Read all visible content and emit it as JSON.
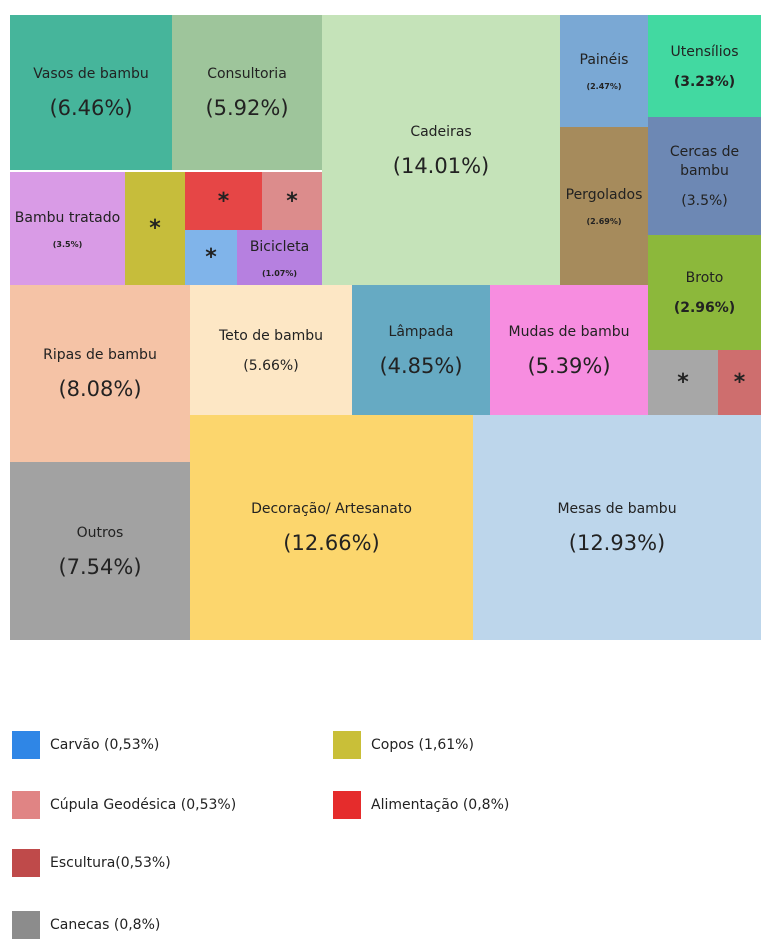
{
  "chart_data": {
    "type": "treemap",
    "categories": [
      "Vasos de bambu",
      "Consultoria",
      "Cadeiras",
      "Painéis",
      "Utensílios",
      "Pergolados",
      "Cercas de bambu",
      "Broto",
      "Bambu tratado",
      "*",
      "*",
      "*",
      "*",
      "Bicicleta",
      "Ripas de bambu",
      "Teto de bambu",
      "Lâmpada",
      "Mudas de bambu",
      "*",
      "*",
      "Outros",
      "Decoração/ Artesanato",
      "Mesas de bambu"
    ],
    "values": [
      6.46,
      5.92,
      14.01,
      2.47,
      3.23,
      2.69,
      3.5,
      2.96,
      3.5,
      1.61,
      0.8,
      0.53,
      0.53,
      1.07,
      8.08,
      5.66,
      4.85,
      5.39,
      0.8,
      0.53,
      7.54,
      12.66,
      12.93
    ],
    "value_labels": [
      "(6.46%)",
      "(5.92%)",
      "(14.01%)",
      "(2.47%)",
      "(3.23%)",
      "(2.69%)",
      "(3.5%)",
      "(2.96%)",
      "(3.5%)",
      null,
      null,
      null,
      null,
      "(1.07%)",
      "(8.08%)",
      "(5.66%)",
      "(4.85%)",
      "(5.39%)",
      null,
      null,
      "(7.54%)",
      "(12.66%)",
      "(12.93%)"
    ],
    "colors": [
      "#46b59b",
      "#9ec59b",
      "#c5e3b9",
      "#7aa8d4",
      "#42d9a1",
      "#a68b5c",
      "#6d88b4",
      "#8cb83b",
      "#d99be6",
      "#c6bd3b",
      "#e64646",
      "#dc8c8c",
      "#80b4ea",
      "#b680e0",
      "#f5c3a6",
      "#fde7c5",
      "#66aac3",
      "#f78de0",
      "#a7a7a7",
      "#ce6e6e",
      "#a2a2a2",
      "#fcd66d",
      "#bdd6eb"
    ],
    "legend": [
      {
        "label": "Carvão (0,53%)",
        "color": "#2f86e6"
      },
      {
        "label": "Copos (1,61%)",
        "color": "#c9bf38"
      },
      {
        "label": "Cúpula Geodésica (0,53%)",
        "color": "#e08484"
      },
      {
        "label": "Alimentação (0,8%)",
        "color": "#e52c2c"
      },
      {
        "label": "Escultura(0,53%)",
        "color": "#bf4a4a"
      },
      {
        "label": "Canecas (0,8%)",
        "color": "#8c8c8c"
      }
    ]
  }
}
